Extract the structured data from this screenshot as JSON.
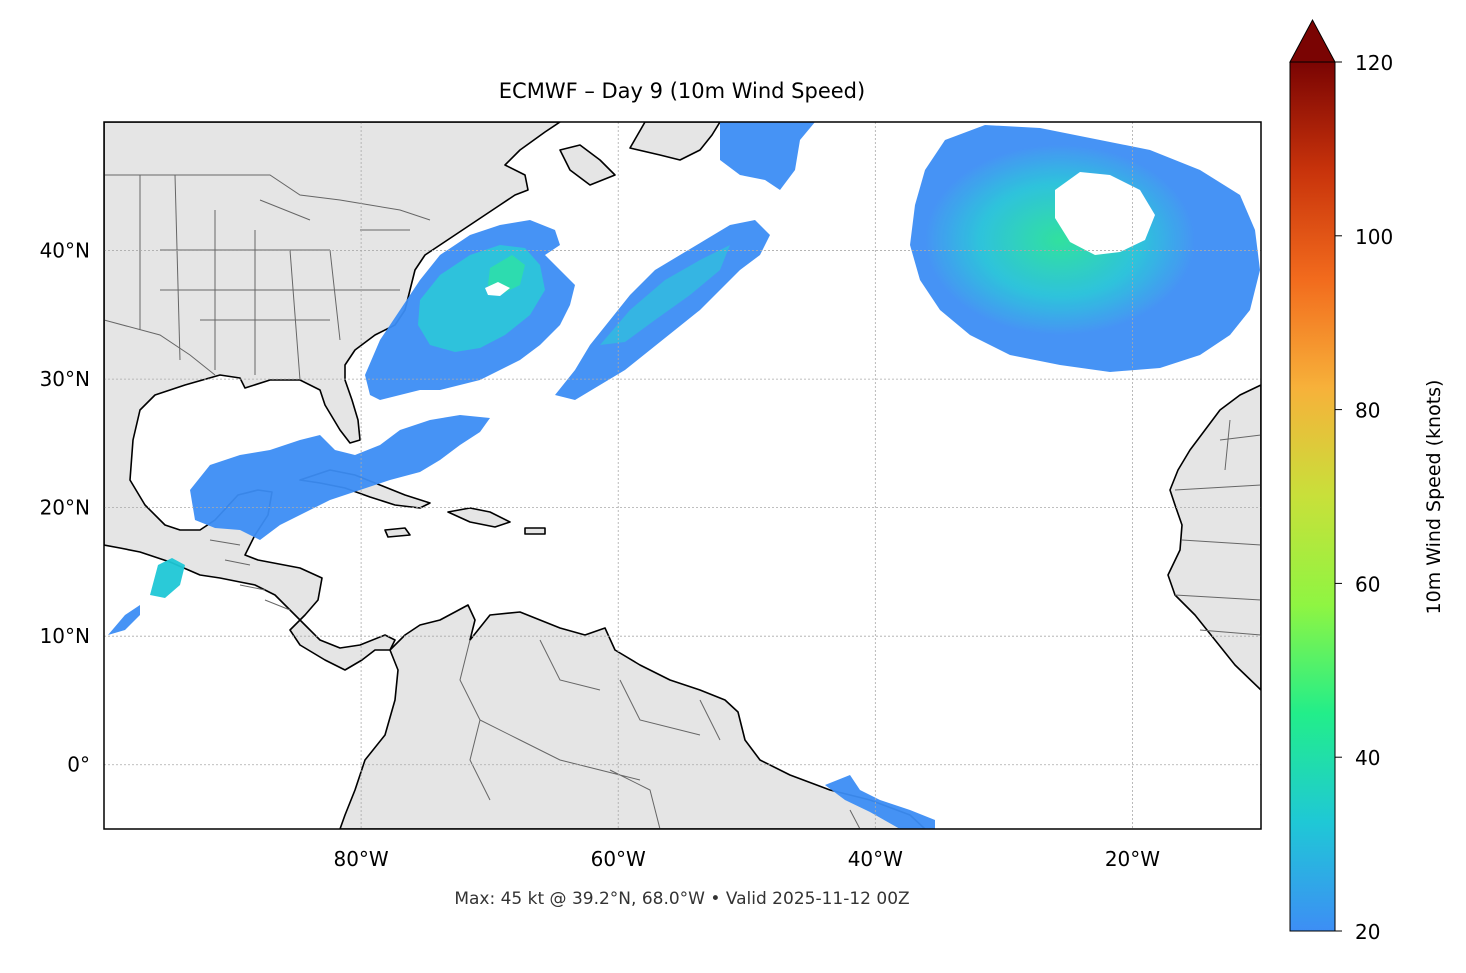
{
  "title": "ECMWF – Day 9 (10m Wind Speed)",
  "footer": "Max: 45 kt @ 39.2°N, 68.0°W • Valid 2025-11-12 00Z",
  "map": {
    "lon_range": [
      -100,
      -10
    ],
    "lat_range": [
      -5,
      50
    ],
    "land_color": "#e5e5e5",
    "ocean_color": "#ffffff",
    "coastline_color": "#000000",
    "border_color": "#666666",
    "gridlines": true,
    "x_ticks": [
      {
        "value": -80,
        "label": "80°W"
      },
      {
        "value": -60,
        "label": "60°W"
      },
      {
        "value": -40,
        "label": "40°W"
      },
      {
        "value": -20,
        "label": "20°W"
      }
    ],
    "y_ticks": [
      {
        "value": 40,
        "label": "40°N"
      },
      {
        "value": 30,
        "label": "30°N"
      },
      {
        "value": 20,
        "label": "20°N"
      },
      {
        "value": 10,
        "label": "10°N"
      },
      {
        "value": 0,
        "label": "0°"
      }
    ]
  },
  "colorbar": {
    "label": "10m Wind Speed (knots)",
    "min": 20,
    "max": 120,
    "extend": "max",
    "ticks": [
      {
        "value": 20,
        "label": "20"
      },
      {
        "value": 40,
        "label": "40"
      },
      {
        "value": 60,
        "label": "60"
      },
      {
        "value": 80,
        "label": "80"
      },
      {
        "value": 100,
        "label": "100"
      },
      {
        "value": 120,
        "label": "120"
      }
    ],
    "colors": [
      "#3d8ef5",
      "#1fc8d6",
      "#22ee8a",
      "#8ff542",
      "#c8e03a",
      "#f7b13a",
      "#f26b1d",
      "#c8330b",
      "#7a0403"
    ]
  },
  "wind_fields": [
    {
      "name": "western-atlantic-swath",
      "speed": 30
    },
    {
      "name": "central-atlantic-swath",
      "speed": 26
    },
    {
      "name": "eastern-atlantic-cyclone",
      "speed": 33
    },
    {
      "name": "gulf-caribbean-swath",
      "speed": 25
    },
    {
      "name": "pacific-gulf-tehuantepec",
      "speed": 28
    },
    {
      "name": "equatorial-patch",
      "speed": 22
    }
  ],
  "max_wind": {
    "speed_kt": 45,
    "lat": 39.2,
    "lon": -68.0
  }
}
